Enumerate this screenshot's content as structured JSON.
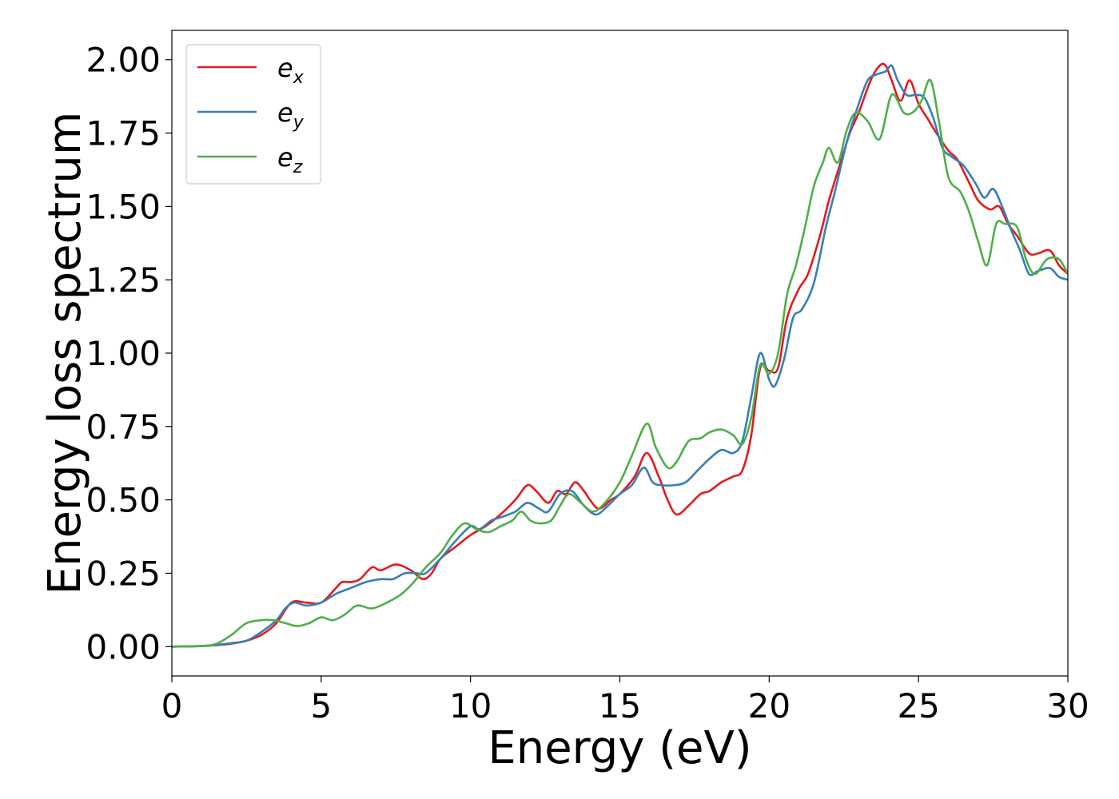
{
  "chart_data": {
    "type": "line",
    "title": "",
    "xlabel": "Energy (eV)",
    "ylabel": "Energy loss spectrum",
    "xlim": [
      0,
      30
    ],
    "ylim": [
      -0.1,
      2.1
    ],
    "xticks": [
      0,
      5,
      10,
      15,
      20,
      25,
      30
    ],
    "xtick_labels": [
      "0",
      "5",
      "10",
      "15",
      "20",
      "25",
      "30"
    ],
    "yticks": [
      0.0,
      0.25,
      0.5,
      0.75,
      1.0,
      1.25,
      1.5,
      1.75,
      2.0
    ],
    "ytick_labels": [
      "0.00",
      "0.25",
      "0.50",
      "0.75",
      "1.00",
      "1.25",
      "1.50",
      "1.75",
      "2.00"
    ],
    "grid": false,
    "legend_position": "top-left",
    "series": [
      {
        "name": "e_x",
        "label_base": "e",
        "label_sub": "x",
        "color": "#e41a1c",
        "points": [
          [
            0,
            0
          ],
          [
            1,
            0.002
          ],
          [
            1.5,
            0.005
          ],
          [
            2,
            0.01
          ],
          [
            2.5,
            0.02
          ],
          [
            3,
            0.04
          ],
          [
            3.5,
            0.08
          ],
          [
            4,
            0.15
          ],
          [
            4.5,
            0.15
          ],
          [
            5,
            0.15
          ],
          [
            5.5,
            0.2
          ],
          [
            5.7,
            0.22
          ],
          [
            6,
            0.22
          ],
          [
            6.3,
            0.23
          ],
          [
            6.7,
            0.27
          ],
          [
            7,
            0.26
          ],
          [
            7.5,
            0.28
          ],
          [
            8,
            0.26
          ],
          [
            8.4,
            0.23
          ],
          [
            8.7,
            0.25
          ],
          [
            9,
            0.3
          ],
          [
            9.5,
            0.34
          ],
          [
            10,
            0.38
          ],
          [
            10.5,
            0.41
          ],
          [
            11,
            0.45
          ],
          [
            11.5,
            0.5
          ],
          [
            11.9,
            0.55
          ],
          [
            12.2,
            0.53
          ],
          [
            12.6,
            0.49
          ],
          [
            12.9,
            0.53
          ],
          [
            13.2,
            0.52
          ],
          [
            13.5,
            0.56
          ],
          [
            13.8,
            0.53
          ],
          [
            14,
            0.5
          ],
          [
            14.3,
            0.47
          ],
          [
            14.7,
            0.5
          ],
          [
            15,
            0.52
          ],
          [
            15.5,
            0.58
          ],
          [
            15.9,
            0.66
          ],
          [
            16.3,
            0.58
          ],
          [
            16.6,
            0.5
          ],
          [
            16.9,
            0.45
          ],
          [
            17.3,
            0.48
          ],
          [
            17.7,
            0.52
          ],
          [
            18,
            0.53
          ],
          [
            18.4,
            0.56
          ],
          [
            18.8,
            0.58
          ],
          [
            19.1,
            0.6
          ],
          [
            19.4,
            0.72
          ],
          [
            19.7,
            0.95
          ],
          [
            20,
            0.94
          ],
          [
            20.3,
            0.95
          ],
          [
            20.6,
            1.12
          ],
          [
            21,
            1.22
          ],
          [
            21.3,
            1.27
          ],
          [
            21.7,
            1.4
          ],
          [
            22,
            1.52
          ],
          [
            22.3,
            1.62
          ],
          [
            22.7,
            1.75
          ],
          [
            23,
            1.82
          ],
          [
            23.4,
            1.93
          ],
          [
            23.7,
            1.98
          ],
          [
            23.9,
            1.98
          ],
          [
            24.1,
            1.93
          ],
          [
            24.4,
            1.86
          ],
          [
            24.7,
            1.93
          ],
          [
            25,
            1.85
          ],
          [
            25.3,
            1.8
          ],
          [
            25.6,
            1.75
          ],
          [
            26,
            1.69
          ],
          [
            26.3,
            1.66
          ],
          [
            26.7,
            1.58
          ],
          [
            27,
            1.52
          ],
          [
            27.4,
            1.49
          ],
          [
            27.7,
            1.5
          ],
          [
            28,
            1.44
          ],
          [
            28.3,
            1.4
          ],
          [
            28.7,
            1.34
          ],
          [
            29,
            1.34
          ],
          [
            29.4,
            1.35
          ],
          [
            29.7,
            1.3
          ],
          [
            30,
            1.27
          ]
        ]
      },
      {
        "name": "e_y",
        "label_base": "e",
        "label_sub": "y",
        "color": "#377eb8",
        "points": [
          [
            0,
            0
          ],
          [
            1,
            0.002
          ],
          [
            1.5,
            0.006
          ],
          [
            2,
            0.012
          ],
          [
            2.5,
            0.02
          ],
          [
            3,
            0.05
          ],
          [
            3.5,
            0.09
          ],
          [
            3.8,
            0.13
          ],
          [
            4.1,
            0.15
          ],
          [
            4.5,
            0.14
          ],
          [
            5,
            0.15
          ],
          [
            5.5,
            0.18
          ],
          [
            6,
            0.2
          ],
          [
            6.5,
            0.22
          ],
          [
            7,
            0.23
          ],
          [
            7.4,
            0.23
          ],
          [
            7.8,
            0.25
          ],
          [
            8.2,
            0.25
          ],
          [
            8.5,
            0.25
          ],
          [
            9,
            0.3
          ],
          [
            9.5,
            0.36
          ],
          [
            10,
            0.41
          ],
          [
            10.3,
            0.4
          ],
          [
            10.7,
            0.43
          ],
          [
            11,
            0.44
          ],
          [
            11.5,
            0.46
          ],
          [
            11.9,
            0.49
          ],
          [
            12.3,
            0.47
          ],
          [
            12.6,
            0.46
          ],
          [
            13,
            0.52
          ],
          [
            13.4,
            0.53
          ],
          [
            13.8,
            0.48
          ],
          [
            14.2,
            0.45
          ],
          [
            14.6,
            0.48
          ],
          [
            15,
            0.52
          ],
          [
            15.4,
            0.55
          ],
          [
            15.8,
            0.61
          ],
          [
            16.1,
            0.56
          ],
          [
            16.4,
            0.55
          ],
          [
            16.8,
            0.55
          ],
          [
            17.2,
            0.56
          ],
          [
            17.6,
            0.6
          ],
          [
            18,
            0.64
          ],
          [
            18.4,
            0.67
          ],
          [
            18.8,
            0.66
          ],
          [
            19.1,
            0.7
          ],
          [
            19.4,
            0.85
          ],
          [
            19.7,
            1.0
          ],
          [
            20,
            0.91
          ],
          [
            20.2,
            0.89
          ],
          [
            20.5,
            0.98
          ],
          [
            20.8,
            1.12
          ],
          [
            21.1,
            1.15
          ],
          [
            21.5,
            1.24
          ],
          [
            21.9,
            1.43
          ],
          [
            22.2,
            1.55
          ],
          [
            22.6,
            1.72
          ],
          [
            23,
            1.85
          ],
          [
            23.3,
            1.93
          ],
          [
            23.6,
            1.95
          ],
          [
            23.9,
            1.96
          ],
          [
            24.1,
            1.98
          ],
          [
            24.3,
            1.93
          ],
          [
            24.6,
            1.88
          ],
          [
            24.9,
            1.88
          ],
          [
            25.2,
            1.87
          ],
          [
            25.5,
            1.8
          ],
          [
            25.8,
            1.7
          ],
          [
            26.1,
            1.67
          ],
          [
            26.5,
            1.64
          ],
          [
            26.9,
            1.58
          ],
          [
            27.2,
            1.53
          ],
          [
            27.5,
            1.56
          ],
          [
            27.8,
            1.5
          ],
          [
            28.1,
            1.42
          ],
          [
            28.4,
            1.35
          ],
          [
            28.7,
            1.27
          ],
          [
            29,
            1.28
          ],
          [
            29.4,
            1.29
          ],
          [
            29.7,
            1.26
          ],
          [
            30,
            1.25
          ]
        ]
      },
      {
        "name": "e_z",
        "label_base": "e",
        "label_sub": "z",
        "color": "#4daf4a",
        "points": [
          [
            0,
            0
          ],
          [
            1,
            0.002
          ],
          [
            1.5,
            0.01
          ],
          [
            2,
            0.04
          ],
          [
            2.5,
            0.08
          ],
          [
            3,
            0.09
          ],
          [
            3.4,
            0.09
          ],
          [
            3.8,
            0.08
          ],
          [
            4.2,
            0.07
          ],
          [
            4.6,
            0.08
          ],
          [
            5,
            0.1
          ],
          [
            5.4,
            0.09
          ],
          [
            5.8,
            0.11
          ],
          [
            6.2,
            0.14
          ],
          [
            6.7,
            0.13
          ],
          [
            7.2,
            0.15
          ],
          [
            7.7,
            0.18
          ],
          [
            8.1,
            0.22
          ],
          [
            8.5,
            0.27
          ],
          [
            9,
            0.32
          ],
          [
            9.4,
            0.38
          ],
          [
            9.8,
            0.42
          ],
          [
            10.2,
            0.4
          ],
          [
            10.6,
            0.39
          ],
          [
            11,
            0.41
          ],
          [
            11.4,
            0.43
          ],
          [
            11.7,
            0.46
          ],
          [
            12,
            0.43
          ],
          [
            12.3,
            0.42
          ],
          [
            12.7,
            0.43
          ],
          [
            13,
            0.48
          ],
          [
            13.3,
            0.52
          ],
          [
            13.7,
            0.49
          ],
          [
            14.1,
            0.46
          ],
          [
            14.5,
            0.49
          ],
          [
            15,
            0.56
          ],
          [
            15.4,
            0.65
          ],
          [
            15.9,
            0.76
          ],
          [
            16.2,
            0.68
          ],
          [
            16.6,
            0.61
          ],
          [
            16.9,
            0.63
          ],
          [
            17.3,
            0.7
          ],
          [
            17.7,
            0.71
          ],
          [
            18,
            0.73
          ],
          [
            18.4,
            0.74
          ],
          [
            18.8,
            0.72
          ],
          [
            19.1,
            0.69
          ],
          [
            19.4,
            0.78
          ],
          [
            19.7,
            0.96
          ],
          [
            20,
            0.93
          ],
          [
            20.3,
            1.0
          ],
          [
            20.6,
            1.2
          ],
          [
            20.9,
            1.3
          ],
          [
            21.2,
            1.43
          ],
          [
            21.5,
            1.57
          ],
          [
            21.8,
            1.65
          ],
          [
            22,
            1.7
          ],
          [
            22.3,
            1.65
          ],
          [
            22.6,
            1.76
          ],
          [
            22.9,
            1.82
          ],
          [
            23.3,
            1.79
          ],
          [
            23.7,
            1.73
          ],
          [
            24.1,
            1.88
          ],
          [
            24.5,
            1.82
          ],
          [
            24.8,
            1.82
          ],
          [
            25.1,
            1.86
          ],
          [
            25.4,
            1.93
          ],
          [
            25.7,
            1.78
          ],
          [
            26,
            1.6
          ],
          [
            26.4,
            1.55
          ],
          [
            26.7,
            1.48
          ],
          [
            27,
            1.38
          ],
          [
            27.3,
            1.3
          ],
          [
            27.6,
            1.44
          ],
          [
            27.9,
            1.44
          ],
          [
            28.3,
            1.43
          ],
          [
            28.6,
            1.32
          ],
          [
            28.9,
            1.27
          ],
          [
            29.3,
            1.32
          ],
          [
            29.7,
            1.32
          ],
          [
            30,
            1.27
          ]
        ]
      }
    ]
  }
}
